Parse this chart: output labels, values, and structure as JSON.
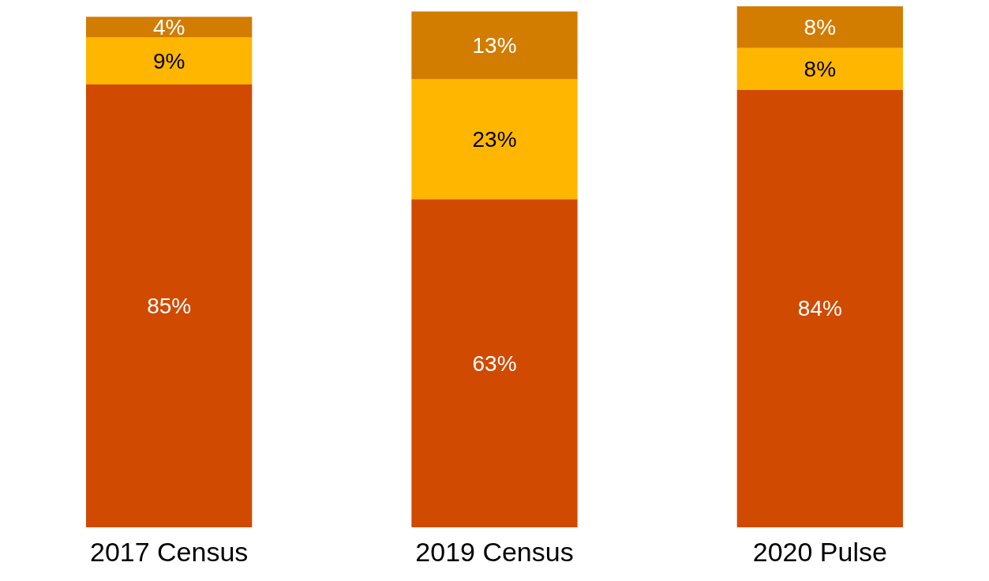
{
  "chart_data": {
    "type": "bar",
    "stacked": true,
    "categories": [
      "2017 Census",
      "2019 Census",
      "2020 Pulse"
    ],
    "series": [
      {
        "color": "#d04a02",
        "values": [
          85,
          63,
          84
        ],
        "value_labels": [
          "85%",
          "63%",
          "84%"
        ]
      },
      {
        "color": "#ffb600",
        "values": [
          9,
          23,
          8
        ],
        "value_labels": [
          "9%",
          "23%",
          "8%"
        ]
      },
      {
        "color": "#d27c00",
        "values": [
          4,
          13,
          8
        ],
        "value_labels": [
          "4%",
          "13%",
          "8%"
        ]
      }
    ]
  }
}
